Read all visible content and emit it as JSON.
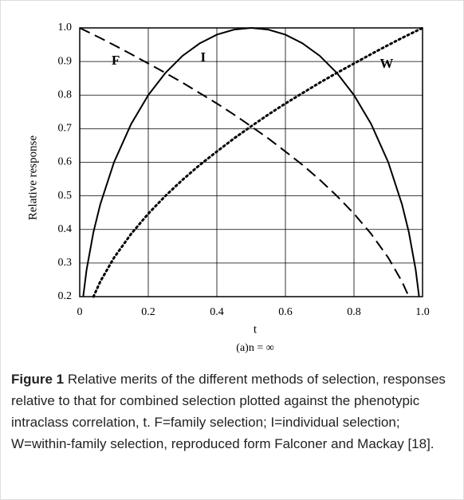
{
  "chart_data": {
    "type": "line",
    "ylabel": "Relative response",
    "xlabel": "t",
    "subtitle": "(a)n = ∞",
    "x": [
      0,
      0.01,
      0.02,
      0.04,
      0.06,
      0.1,
      0.15,
      0.2,
      0.25,
      0.3,
      0.35,
      0.4,
      0.45,
      0.5,
      0.55,
      0.6,
      0.65,
      0.7,
      0.75,
      0.8,
      0.85,
      0.9,
      0.94,
      0.96,
      0.98,
      0.99,
      1.0
    ],
    "series": [
      {
        "name": "F",
        "color": "#000000",
        "style": "dashed",
        "values": [
          1.0,
          0.995,
          0.99,
          0.98,
          0.97,
          0.949,
          0.922,
          0.894,
          0.866,
          0.837,
          0.806,
          0.775,
          0.742,
          0.707,
          0.671,
          0.632,
          0.592,
          0.548,
          0.5,
          0.447,
          0.387,
          0.316,
          0.245,
          0.2,
          null,
          null,
          null
        ]
      },
      {
        "name": "I",
        "color": "#000000",
        "style": "solid",
        "values": [
          null,
          0.199,
          0.28,
          0.392,
          0.475,
          0.6,
          0.714,
          0.8,
          0.866,
          0.917,
          0.954,
          0.98,
          0.995,
          1.0,
          0.995,
          0.98,
          0.954,
          0.917,
          0.866,
          0.8,
          0.714,
          0.6,
          0.475,
          0.392,
          0.28,
          0.199,
          null
        ]
      },
      {
        "name": "W",
        "color": "#000000",
        "style": "dotted",
        "values": [
          null,
          null,
          null,
          0.2,
          0.245,
          0.316,
          0.387,
          0.447,
          0.5,
          0.548,
          0.592,
          0.632,
          0.671,
          0.707,
          0.742,
          0.775,
          0.806,
          0.837,
          0.866,
          0.894,
          0.922,
          0.949,
          0.97,
          0.98,
          0.99,
          0.995,
          1.0
        ]
      }
    ],
    "annotations": [
      {
        "text": "F",
        "x": 0.105,
        "y": 0.9
      },
      {
        "text": "I",
        "x": 0.36,
        "y": 0.91
      },
      {
        "text": "W",
        "x": 0.895,
        "y": 0.89
      }
    ],
    "xlim": [
      0,
      1.0
    ],
    "ylim": [
      0.2,
      1.0
    ],
    "xticks": [
      0,
      0.2,
      0.4,
      0.6,
      0.8,
      {
        "value": 1,
        "label": "1.0"
      }
    ],
    "yticks": [
      0.2,
      0.3,
      0.4,
      0.5,
      0.6,
      0.7,
      0.8,
      0.9,
      {
        "value": 1,
        "label": "1.0"
      }
    ],
    "grid": true
  },
  "caption": {
    "label": "Figure 1",
    "text": "Relative merits of the different methods of selection, responses relative to that for combined selection plotted against the phenotypic intraclass correlation, t. F=family selection; I=individual selection; W=within-family selection, reproduced form Falconer and Mackay [18]."
  }
}
